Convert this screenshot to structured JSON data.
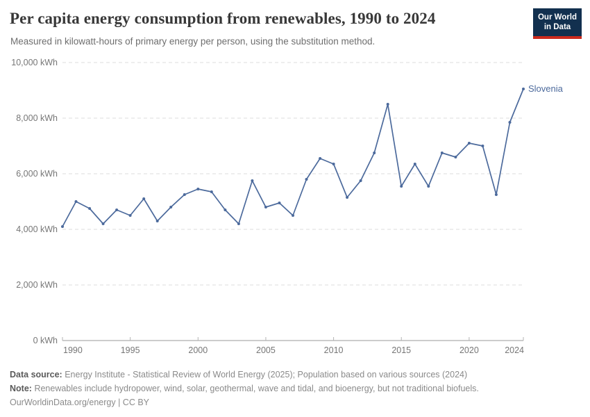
{
  "header": {
    "title": "Per capita energy consumption from renewables, 1990 to 2024",
    "subtitle": "Measured in kilowatt-hours of primary energy per person, using the substitution method.",
    "logo": {
      "line1": "Our World",
      "line2": "in Data",
      "navy": "#12304F",
      "red": "#CC2A1D"
    }
  },
  "chart_data": {
    "type": "line",
    "title": "Per capita energy consumption from renewables, 1990 to 2024",
    "ylabel": "",
    "xlabel": "",
    "unit": "kWh",
    "grid": "horizontal-dashed",
    "legend_position": "end-of-line",
    "xlim": [
      1990,
      2024
    ],
    "ylim": [
      0,
      10000
    ],
    "x_ticks": [
      1990,
      1995,
      2000,
      2005,
      2010,
      2015,
      2020,
      2024
    ],
    "y_ticks": [
      {
        "value": 0,
        "label": "0 kWh"
      },
      {
        "value": 2000,
        "label": "2,000 kWh"
      },
      {
        "value": 4000,
        "label": "4,000 kWh"
      },
      {
        "value": 6000,
        "label": "6,000 kWh"
      },
      {
        "value": 8000,
        "label": "8,000 kWh"
      },
      {
        "value": 10000,
        "label": "10,000 kWh"
      }
    ],
    "series": [
      {
        "name": "Slovenia",
        "color": "#4C6A9C",
        "x": [
          1990,
          1991,
          1992,
          1993,
          1994,
          1995,
          1996,
          1997,
          1998,
          1999,
          2000,
          2001,
          2002,
          2003,
          2004,
          2005,
          2006,
          2007,
          2008,
          2009,
          2010,
          2011,
          2012,
          2013,
          2014,
          2015,
          2016,
          2017,
          2018,
          2019,
          2020,
          2021,
          2022,
          2023,
          2024
        ],
        "values": [
          4100,
          5000,
          4750,
          4200,
          4700,
          4500,
          5100,
          4300,
          4800,
          5250,
          5450,
          5350,
          4700,
          4200,
          5750,
          4800,
          4950,
          4500,
          5800,
          6550,
          6350,
          5150,
          5750,
          6750,
          8500,
          5550,
          6350,
          5550,
          6750,
          6600,
          7100,
          7000,
          5250,
          7850,
          9050
        ]
      }
    ]
  },
  "footer": {
    "data_source_label": "Data source:",
    "data_source_text": "Energy Institute - Statistical Review of World Energy (2025); Population based on various sources (2024)",
    "note_label": "Note:",
    "note_text": "Renewables include hydropower, wind, solar, geothermal, wave and tidal, and bioenergy, but not traditional biofuels.",
    "license_line": "OurWorldinData.org/energy | CC BY"
  }
}
